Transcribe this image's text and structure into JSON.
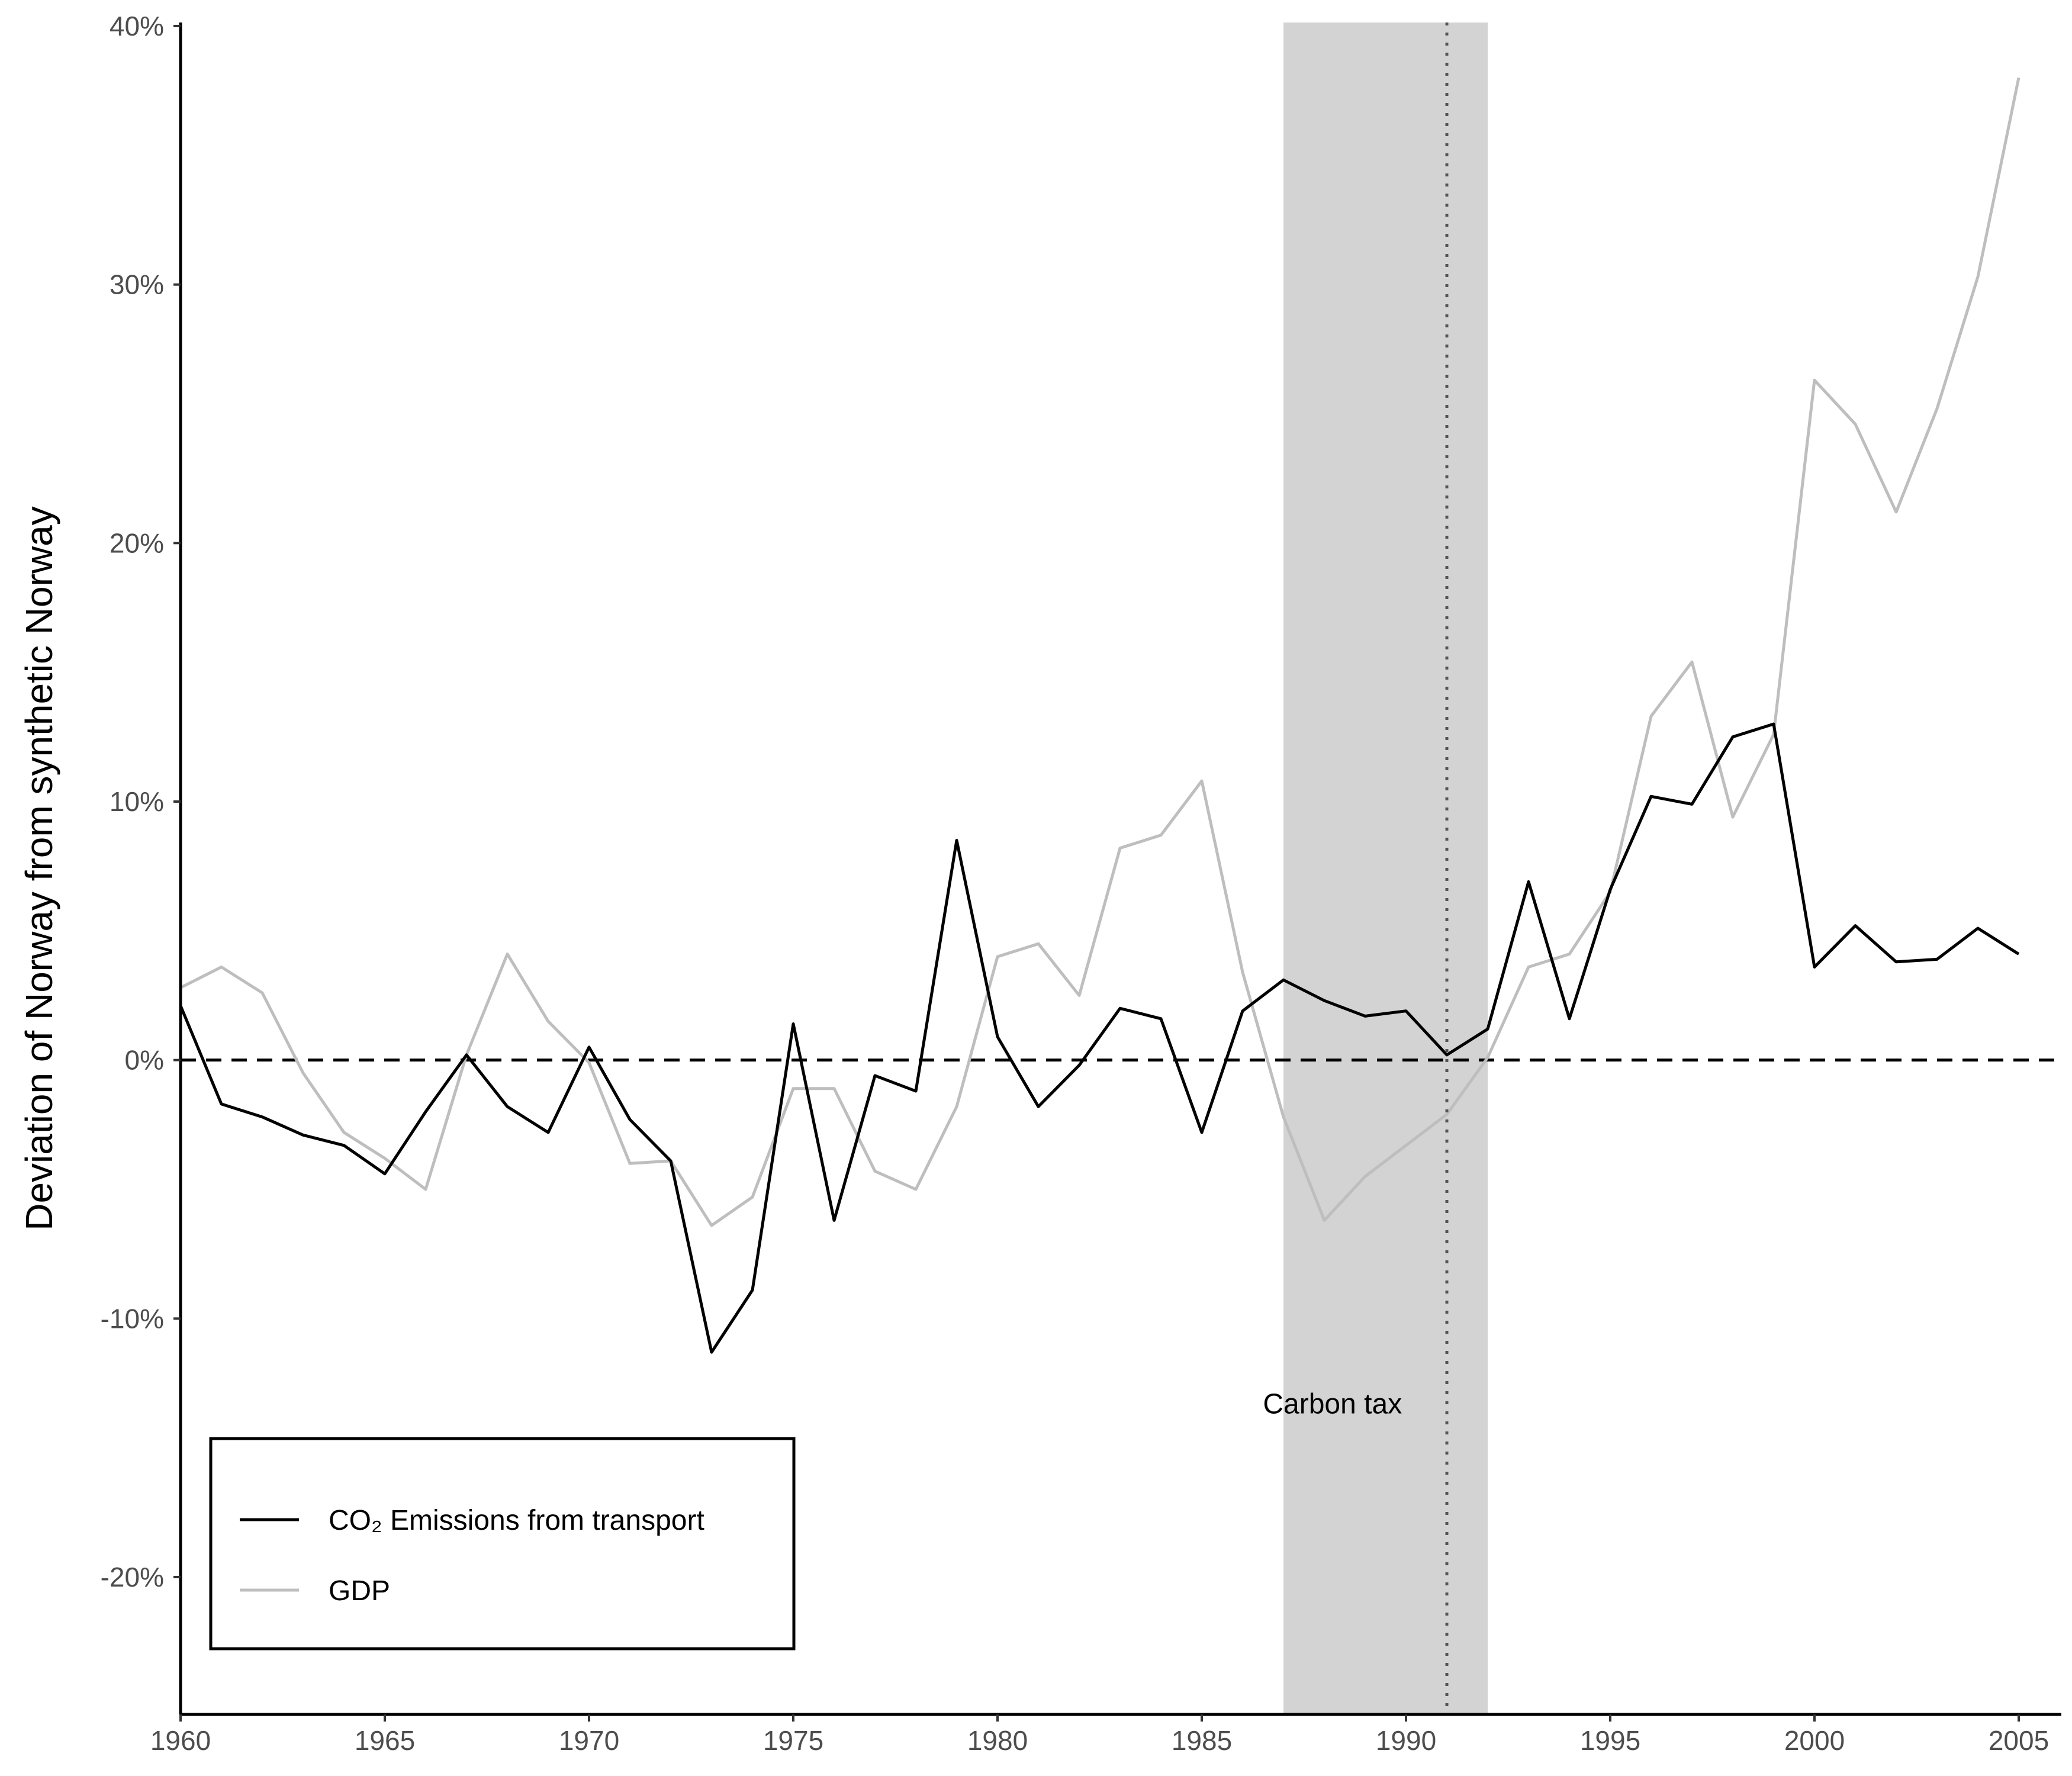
{
  "chart_data": {
    "type": "line",
    "title": "",
    "xlabel": "",
    "ylabel": "Deviation of Norway from synthetic Norway",
    "xlim": [
      1960,
      2006
    ],
    "ylim": [
      -25,
      40
    ],
    "x_ticks": [
      1960,
      1965,
      1970,
      1975,
      1980,
      1985,
      1990,
      1995,
      2000,
      2005
    ],
    "x_tick_labels": [
      "1960",
      "1965",
      "1970",
      "1975",
      "1980",
      "1985",
      "1990",
      "1995",
      "2000",
      "2005"
    ],
    "y_ticks": [
      40,
      30,
      20,
      10,
      0,
      -10,
      -20
    ],
    "y_tick_labels": [
      "40%",
      "30%",
      "20%",
      "10%",
      "0%",
      "-10%",
      "-20%"
    ],
    "grid": false,
    "reference_line": {
      "y": 0,
      "style": "dashed"
    },
    "shaded_region": {
      "x_start": 1987,
      "x_end": 1992,
      "color": "#d3d3d3"
    },
    "vertical_marker": {
      "x": 1991,
      "style": "dotted"
    },
    "annotation": {
      "text": "Carbon tax",
      "x": 1988.2,
      "y": -13.3
    },
    "legend_position": "bottom-left",
    "x": [
      1960,
      1961,
      1962,
      1963,
      1964,
      1965,
      1966,
      1967,
      1968,
      1969,
      1970,
      1971,
      1972,
      1973,
      1974,
      1975,
      1976,
      1977,
      1978,
      1979,
      1980,
      1981,
      1982,
      1983,
      1984,
      1985,
      1986,
      1987,
      1988,
      1989,
      1990,
      1991,
      1992,
      1993,
      1994,
      1995,
      1996,
      1997,
      1998,
      1999,
      2000,
      2001,
      2002,
      2003,
      2004,
      2005
    ],
    "series": [
      {
        "name": "CO₂ Emissions from transport",
        "color": "#000000",
        "values": [
          2.1,
          -1.7,
          -2.2,
          -2.9,
          -3.3,
          -4.4,
          -2.0,
          0.2,
          -1.8,
          -2.8,
          0.5,
          -2.3,
          -3.9,
          -11.3,
          -8.9,
          1.4,
          -6.2,
          -0.6,
          -1.2,
          8.5,
          0.9,
          -1.8,
          -0.2,
          2.0,
          1.6,
          -2.8,
          1.9,
          3.1,
          2.3,
          1.7,
          1.9,
          0.2,
          1.2,
          6.9,
          1.6,
          6.6,
          10.2,
          9.9,
          12.5,
          13.0,
          3.6,
          5.2,
          3.8,
          3.9,
          5.1,
          4.1
        ]
      },
      {
        "name": "GDP",
        "color": "#bebebe",
        "values": [
          2.8,
          3.6,
          2.6,
          -0.5,
          -2.8,
          -3.8,
          -5.0,
          0.2,
          4.1,
          1.5,
          -0.1,
          -4.0,
          -3.9,
          -6.4,
          -5.3,
          -1.1,
          -1.1,
          -4.3,
          -5.0,
          -1.8,
          4.0,
          4.5,
          2.5,
          8.2,
          8.7,
          10.8,
          3.4,
          -2.2,
          -6.2,
          -4.5,
          -3.3,
          -2.1,
          0.1,
          3.6,
          4.1,
          6.5,
          13.3,
          15.4,
          9.4,
          12.6,
          26.3,
          24.6,
          21.2,
          25.2,
          30.3,
          38.0
        ]
      }
    ]
  }
}
